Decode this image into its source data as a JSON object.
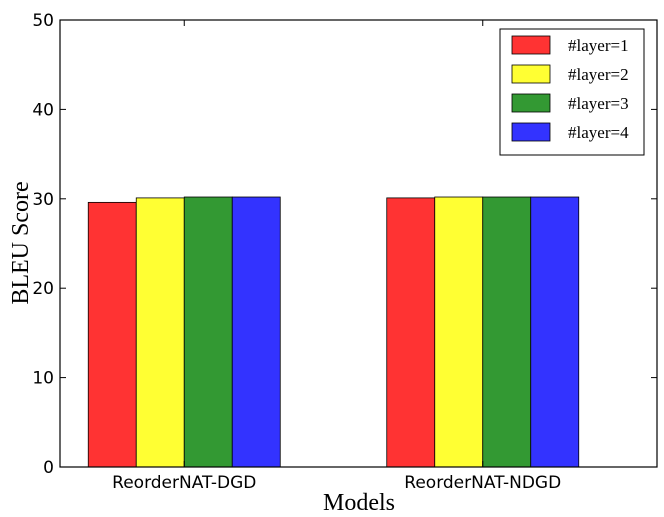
{
  "chart_data": {
    "type": "bar",
    "title": "",
    "xlabel": "Models",
    "ylabel": "BLEU Score",
    "ylim": [
      0,
      50
    ],
    "yticks": [
      "0",
      "10",
      "20",
      "30",
      "40",
      "50"
    ],
    "categories": [
      "ReorderNAT-DGD",
      "ReorderNAT-NDGD"
    ],
    "legend_position": "top-right",
    "grid": false,
    "series": [
      {
        "name": "#layer=1",
        "color": "#ff3333",
        "values": [
          29.6,
          30.1
        ]
      },
      {
        "name": "#layer=2",
        "color": "#ffff33",
        "values": [
          30.1,
          30.2
        ]
      },
      {
        "name": "#layer=3",
        "color": "#339933",
        "values": [
          30.2,
          30.2
        ]
      },
      {
        "name": "#layer=4",
        "color": "#3333ff",
        "values": [
          30.2,
          30.2
        ]
      }
    ]
  }
}
